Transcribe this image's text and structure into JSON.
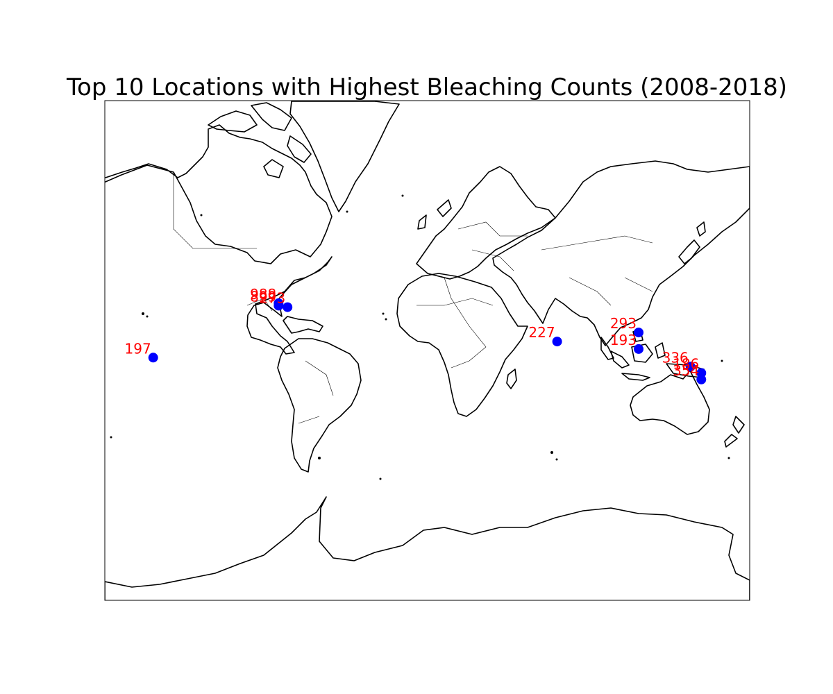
{
  "title": "Top 10 Locations with Highest Bleaching Counts (2008-2018)",
  "colors": {
    "marker": "#0000ff",
    "label": "#ff0000",
    "coastline": "#000000",
    "background": "#ffffff"
  },
  "map": {
    "projection": "mercator",
    "lon_range": [
      -180,
      180
    ],
    "lat_range": [
      -80,
      80
    ]
  },
  "chart_data": {
    "type": "scatter",
    "title": "Top 10 Locations with Highest Bleaching Counts (2008-2018)",
    "xlabel": "",
    "ylabel": "",
    "points": [
      {
        "label": "988",
        "lon": -83.0,
        "lat": 25.5
      },
      {
        "label": "899",
        "lon": -83.0,
        "lat": 24.3
      },
      {
        "label": "273",
        "lon": -78.0,
        "lat": 23.5
      },
      {
        "label": "197",
        "lon": -153.0,
        "lat": -4.0
      },
      {
        "label": "227",
        "lon": 72.5,
        "lat": 5.0
      },
      {
        "label": "293",
        "lon": 118.0,
        "lat": 10.0
      },
      {
        "label": "193",
        "lon": 118.0,
        "lat": 0.8
      },
      {
        "label": "336",
        "lon": 147.0,
        "lat": -9.0
      },
      {
        "label": "186",
        "lon": 153.0,
        "lat": -12.5
      },
      {
        "label": "354",
        "lon": 153.0,
        "lat": -16.0
      }
    ]
  }
}
